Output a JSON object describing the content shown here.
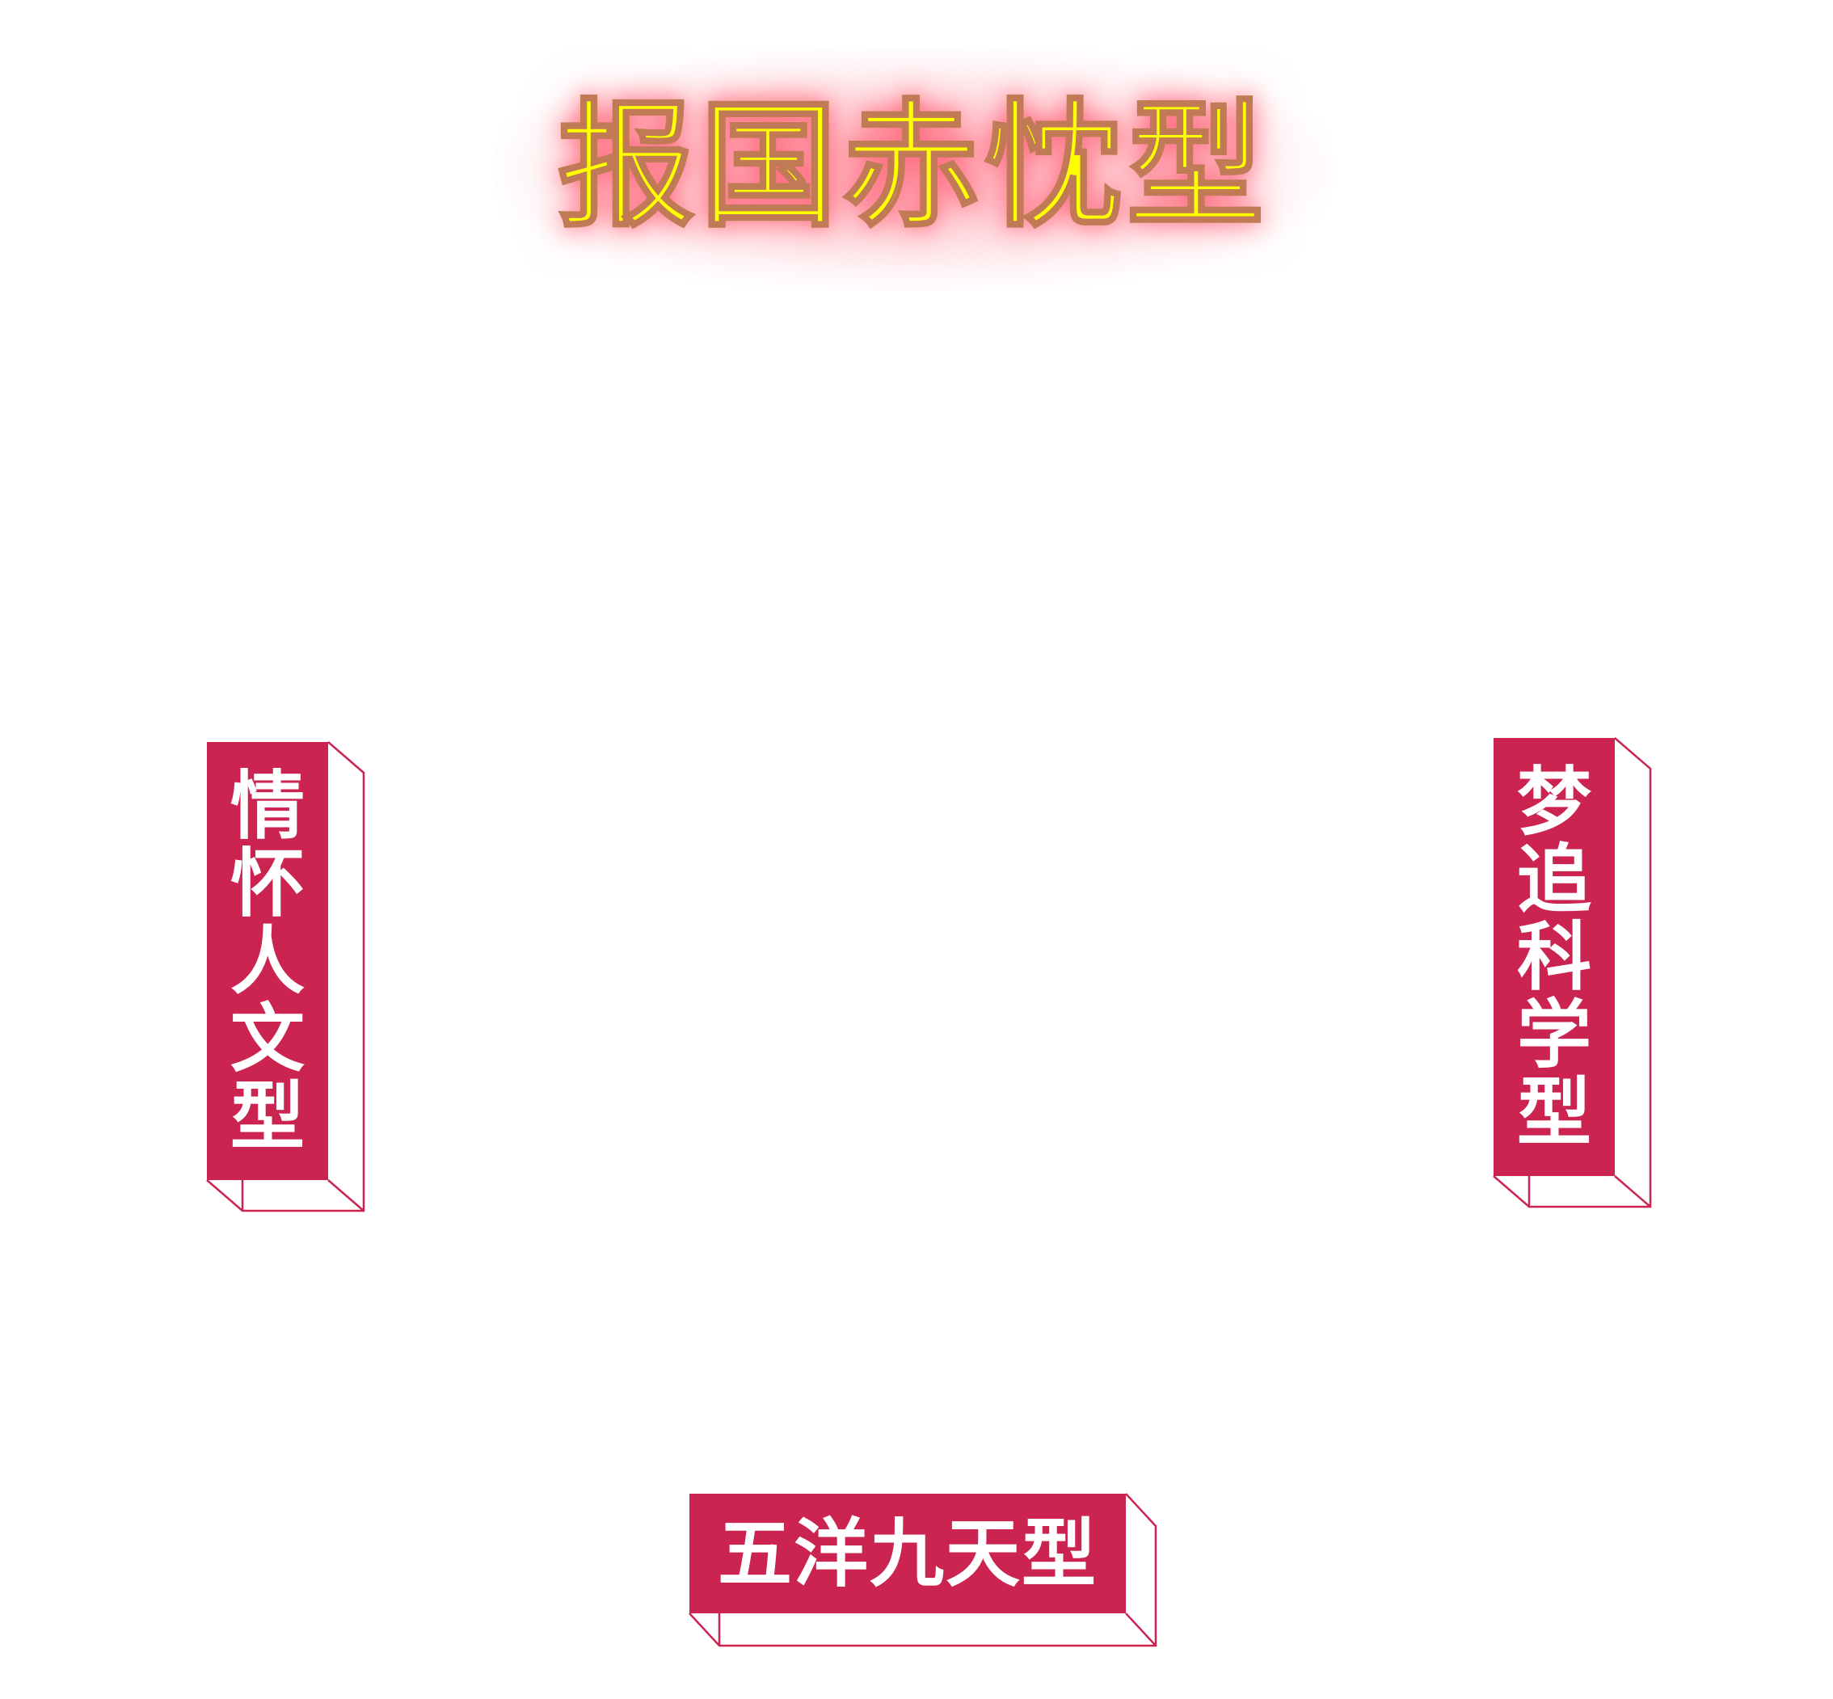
{
  "title": "报国赤忱型",
  "labels": {
    "left": "情怀人文型",
    "right": "梦追科学型",
    "bottom": "五洋九天型"
  },
  "colors": {
    "title_fill": "#ffff00",
    "title_stroke": "#c07a55",
    "title_glow": "#ff7a8c",
    "box_fill": "#cc2451",
    "box_text": "#ffffff"
  }
}
